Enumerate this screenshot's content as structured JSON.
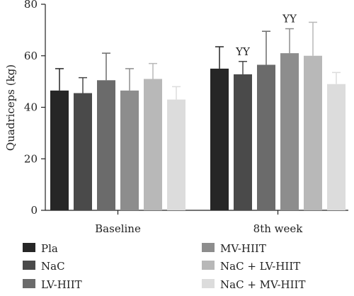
{
  "chart_data": {
    "type": "bar",
    "title": "",
    "xlabel": "",
    "ylabel": "Quadriceps (kg)",
    "ylim": [
      0,
      80
    ],
    "yticks": [
      0,
      20,
      40,
      60,
      80
    ],
    "categories": [
      "Baseline",
      "8th week"
    ],
    "grid": false,
    "legend_placement": "bottom",
    "series": [
      {
        "name": "Pla",
        "color": "#262626",
        "values": [
          46.5,
          55.0
        ],
        "errors": [
          8.5,
          8.5
        ],
        "annotations": [
          "",
          ""
        ]
      },
      {
        "name": "NaC",
        "color": "#4a4a4a",
        "values": [
          45.5,
          52.8
        ],
        "errors": [
          6.0,
          5.0
        ],
        "annotations": [
          "",
          "YY"
        ]
      },
      {
        "name": "LV-HIIT",
        "color": "#6b6b6b",
        "values": [
          50.5,
          56.5
        ],
        "errors": [
          10.5,
          13.0
        ],
        "annotations": [
          "",
          ""
        ]
      },
      {
        "name": "MV-HIIT",
        "color": "#8d8d8d",
        "values": [
          46.5,
          61.0
        ],
        "errors": [
          8.5,
          9.5
        ],
        "annotations": [
          "",
          "YY"
        ]
      },
      {
        "name": "NaC + LV-HIIT",
        "color": "#b8b8b8",
        "values": [
          51.0,
          60.0
        ],
        "errors": [
          6.0,
          13.0
        ],
        "annotations": [
          "",
          ""
        ]
      },
      {
        "name": "NaC + MV-HIIT",
        "color": "#dcdcdc",
        "values": [
          43.0,
          49.0
        ],
        "errors": [
          5.0,
          4.5
        ],
        "annotations": [
          "",
          ""
        ]
      }
    ]
  }
}
